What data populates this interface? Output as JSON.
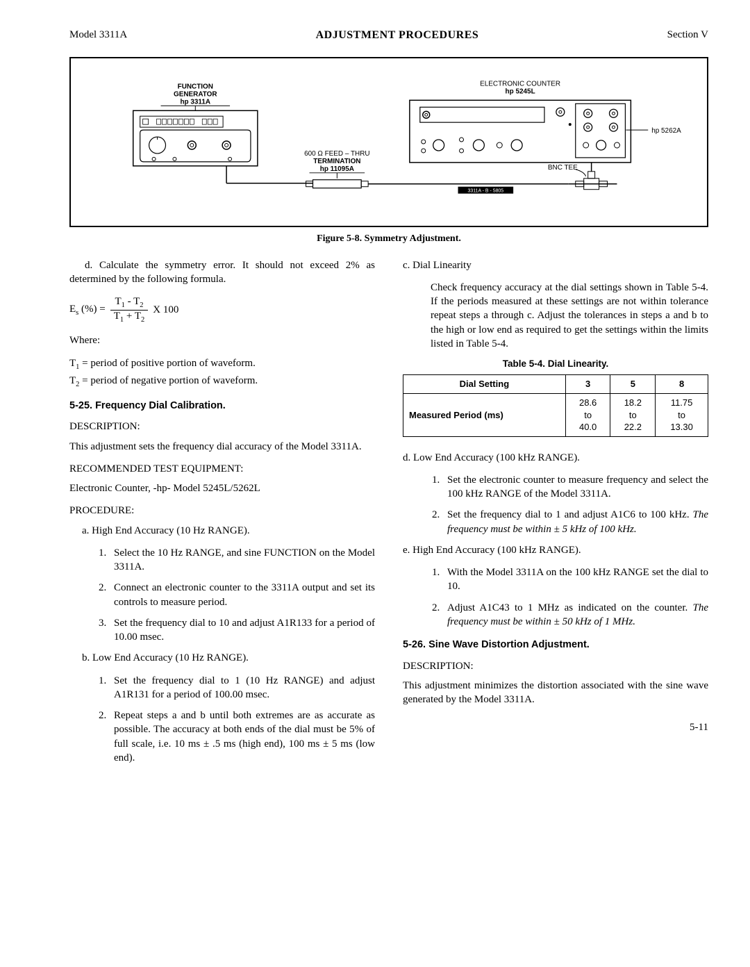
{
  "header": {
    "left": "Model 3311A",
    "center": "ADJUSTMENT PROCEDURES",
    "right": "Section V"
  },
  "figure": {
    "fg_title1": "FUNCTION",
    "fg_title2": "GENERATOR",
    "fg_title3": "hp 3311A",
    "term1": "600 Ω FEED – THRU",
    "term2": "TERMINATION",
    "term3": "hp 11095A",
    "counter1": "ELECTRONIC COUNTER",
    "counter2": "hp 5245L",
    "plugin": "hp 5262A",
    "bnc": "BNC TEE",
    "small": "3311A - B - 5805",
    "caption": "Figure 5-8.  Symmetry Adjustment."
  },
  "left": {
    "d_para": "d.  Calculate the symmetry error. It should not exceed 2% as determined by the following formula.",
    "es_label": "E",
    "es_sub": "s",
    "pct": " (%) = ",
    "x100": "  X 100",
    "t1mt2_a": "T",
    "t1mt2_b": "1",
    "t1mt2_c": " - T",
    "t1mt2_d": "2",
    "t1pt2_a": "T",
    "t1pt2_b": "1",
    "t1pt2_c": " + T",
    "t1pt2_d": "2",
    "where": "Where:",
    "t1_def_a": "T",
    "t1_def_b": "1",
    "t1_def_c": " = period of positive portion of waveform.",
    "t2_def_a": "T",
    "t2_def_b": "2",
    "t2_def_c": " = period of negative portion of waveform.",
    "sec525": "5-25.  Frequency Dial Calibration.",
    "desc_h": "DESCRIPTION:",
    "desc_p": "This adjustment sets the frequency dial accuracy of the Model 3311A.",
    "rte_h": "RECOMMENDED TEST EQUIPMENT:",
    "rte_p": "Electronic Counter, -hp- Model 5245L/5262L",
    "proc_h": "PROCEDURE:",
    "a_head": "a.  High End Accuracy (10 Hz RANGE).",
    "a1": "Select the 10 Hz RANGE, and sine FUNCTION on the Model 3311A.",
    "a2": "Connect an electronic counter to the 3311A output and set its controls to measure period.",
    "a3": "Set the frequency dial to 10 and adjust A1R133 for a period of 10.00 msec.",
    "b_head": "b.  Low End Accuracy (10 Hz RANGE).",
    "b1": "Set the frequency dial to 1 (10 Hz RANGE) and adjust A1R131 for a period of 100.00 msec.",
    "b2": "Repeat steps a and b until both extremes are as accurate as possible. The accuracy at both ends of the dial must be 5% of full scale, i.e. 10 ms ± .5 ms (high end), 100 ms ± 5 ms (low end)."
  },
  "right": {
    "c_head": "c.  Dial Linearity",
    "c_para": "Check frequency accuracy at the dial settings shown in Table 5-4. If the periods measured at these settings are not within tolerance repeat steps a through c. Adjust the tolerances in steps a and b to the high or low end as required to get the settings within the limits listed in Table 5-4.",
    "table_caption": "Table 5-4.  Dial Linearity.",
    "th1": "Dial Setting",
    "th2": "3",
    "th3": "5",
    "th4": "8",
    "row_label": "Measured Period (ms)",
    "c1a": "28.6",
    "c1b": "to",
    "c1c": "40.0",
    "c2a": "18.2",
    "c2b": "to",
    "c2c": "22.2",
    "c3a": "11.75",
    "c3b": "to",
    "c3c": "13.30",
    "d_head": "d.  Low End Accuracy (100 kHz RANGE).",
    "d1": "Set the electronic counter to measure frequency and select the 100 kHz RANGE of the Model 3311A.",
    "d2a": "Set the frequency dial to 1 and adjust A1C6 to 100 kHz. ",
    "d2b": "The frequency must be within ± 5 kHz of 100 kHz.",
    "e_head": "e.  High End Accuracy (100 kHz RANGE).",
    "e1": "With the Model 3311A on the 100 kHz RANGE set the dial to 10.",
    "e2a": "Adjust A1C43 to 1 MHz as indicated on the counter. ",
    "e2b": "The frequency must be within ± 50 kHz of 1 MHz.",
    "sec526": "5-26.  Sine Wave Distortion Adjustment.",
    "desc2_h": "DESCRIPTION:",
    "desc2_p": "This adjustment minimizes the distortion associated with the sine wave generated by the Model 3311A."
  },
  "pagenum": "5-11"
}
